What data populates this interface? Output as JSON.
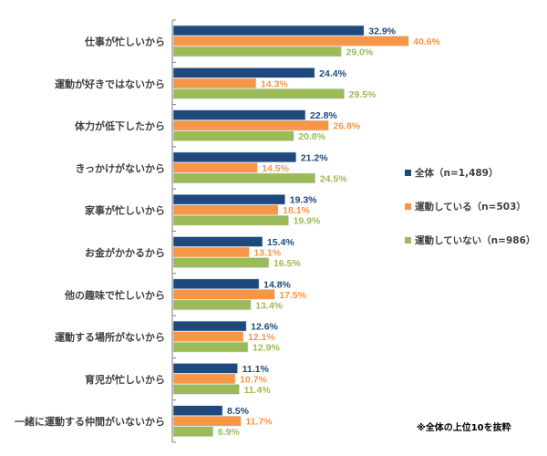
{
  "chart_data": {
    "type": "bar",
    "orientation": "horizontal",
    "title": "",
    "xlabel": "",
    "ylabel": "",
    "xlim": [
      0,
      45
    ],
    "grid": false,
    "legend_position": "right",
    "value_suffix": "%",
    "categories": [
      "仕事が忙しいから",
      "運動が好きではないから",
      "体力が低下したから",
      "きっかけがないから",
      "家事が忙しいから",
      "お金がかかるから",
      "他の趣味で忙しいから",
      "運動する場所がないから",
      "育児が忙しいから",
      "一緒に運動する仲間がいないから"
    ],
    "series": [
      {
        "name": "全体（n=1,489）",
        "color": "#1F497D",
        "values": [
          32.9,
          24.4,
          22.8,
          21.2,
          19.3,
          15.4,
          14.8,
          12.6,
          11.1,
          8.5
        ]
      },
      {
        "name": "運動している（n=503）",
        "color": "#F79646",
        "values": [
          40.6,
          14.3,
          26.8,
          14.5,
          18.1,
          13.1,
          17.5,
          12.1,
          10.7,
          11.7
        ]
      },
      {
        "name": "運動していない（n=986）",
        "color": "#9BBB59",
        "values": [
          29.0,
          29.5,
          20.8,
          24.5,
          19.9,
          16.5,
          13.4,
          12.9,
          11.4,
          6.9
        ]
      }
    ],
    "annotations": [
      "※全体の上位10を抜粋"
    ]
  },
  "legend": {
    "items": [
      {
        "label": "全体（n=1,489）",
        "color": "#1F497D"
      },
      {
        "label": "運動している（n=503）",
        "color": "#F79646"
      },
      {
        "label": "運動していない（n=986）",
        "color": "#9BBB59"
      }
    ]
  },
  "note": "※全体の上位10を抜粋"
}
